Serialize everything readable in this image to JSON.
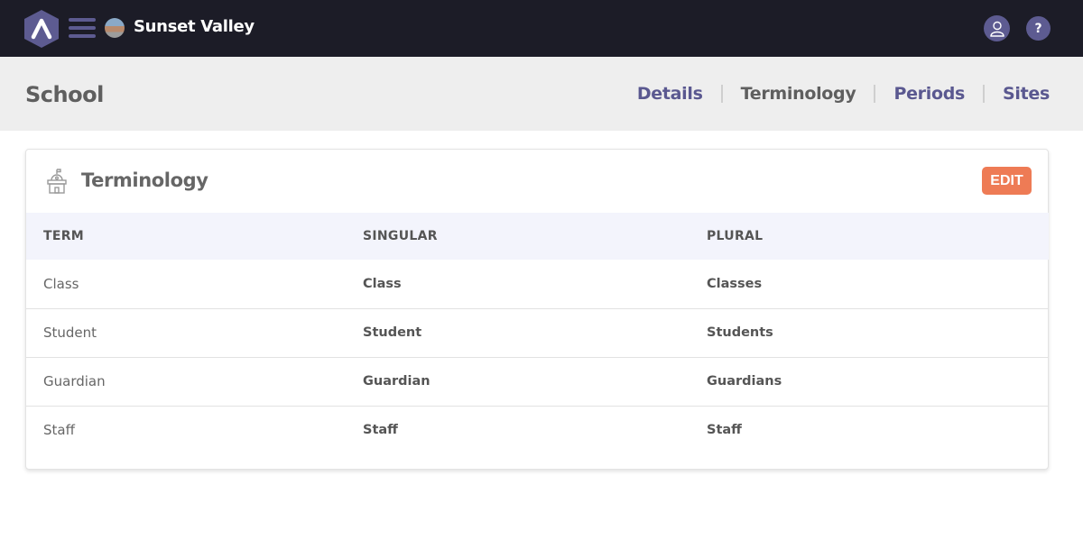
{
  "topbar": {
    "school_name": "Sunset Valley",
    "help_label": "?"
  },
  "header": {
    "title": "School",
    "tabs": [
      {
        "label": "Details",
        "active": false
      },
      {
        "label": "Terminology",
        "active": true
      },
      {
        "label": "Periods",
        "active": false
      },
      {
        "label": "Sites",
        "active": false
      }
    ]
  },
  "card": {
    "title": "Terminology",
    "edit_label": "EDIT",
    "columns": [
      "TERM",
      "SINGULAR",
      "PLURAL"
    ],
    "rows": [
      [
        "Class",
        "Class",
        "Classes"
      ],
      [
        "Student",
        "Student",
        "Students"
      ],
      [
        "Guardian",
        "Guardian",
        "Guardians"
      ],
      [
        "Staff",
        "Staff",
        "Staff"
      ]
    ]
  },
  "colors": {
    "topbar": "#1c1c27",
    "accent": "#5d5b91",
    "edit": "#ee7b55"
  }
}
